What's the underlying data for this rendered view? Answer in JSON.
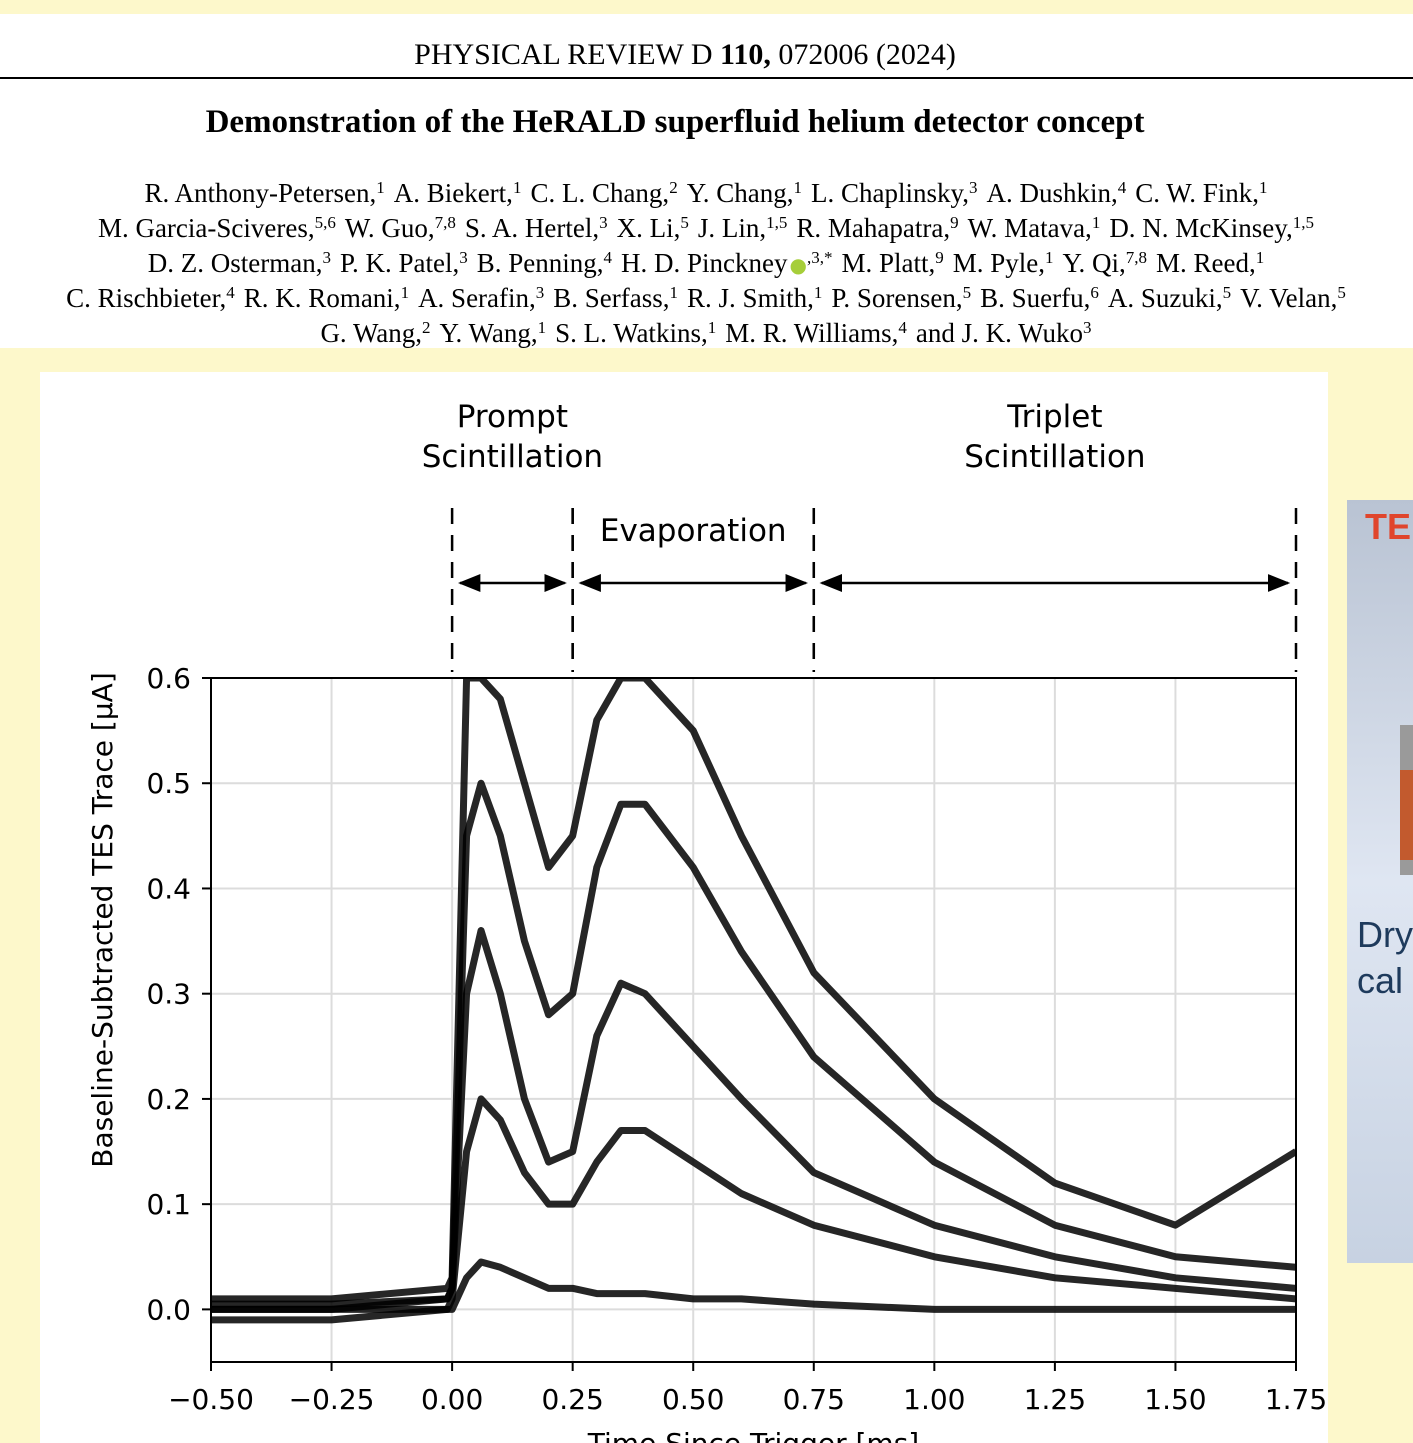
{
  "header": {
    "journal": "PHYSICAL REVIEW D",
    "volume": "110,",
    "article": "072006 (2024)"
  },
  "title": "Demonstration of the HeRALD superfluid helium detector concept",
  "author_lines": [
    [
      {
        "name": "R. Anthony-Petersen,",
        "affil": "1"
      },
      {
        "name": "A. Biekert,",
        "affil": "1"
      },
      {
        "name": "C. L. Chang,",
        "affil": "2"
      },
      {
        "name": "Y. Chang,",
        "affil": "1"
      },
      {
        "name": "L. Chaplinsky,",
        "affil": "3"
      },
      {
        "name": "A. Dushkin,",
        "affil": "4"
      },
      {
        "name": "C. W. Fink,",
        "affil": "1"
      }
    ],
    [
      {
        "name": "M. Garcia-Sciveres,",
        "affil": "5,6"
      },
      {
        "name": "W. Guo,",
        "affil": "7,8"
      },
      {
        "name": "S. A. Hertel,",
        "affil": "3"
      },
      {
        "name": "X. Li,",
        "affil": "5"
      },
      {
        "name": "J. Lin,",
        "affil": "1,5"
      },
      {
        "name": "R. Mahapatra,",
        "affil": "9"
      },
      {
        "name": "W. Matava,",
        "affil": "1"
      },
      {
        "name": "D. N. McKinsey,",
        "affil": "1,5"
      }
    ],
    [
      {
        "name": "D. Z. Osterman,",
        "affil": "3"
      },
      {
        "name": "P. K. Patel,",
        "affil": "3"
      },
      {
        "name": "B. Penning,",
        "affil": "4"
      },
      {
        "name": "H. D. Pinckney",
        "affil": ",3,*",
        "orcid": true
      },
      {
        "name": "M. Platt,",
        "affil": "9"
      },
      {
        "name": "M. Pyle,",
        "affil": "1"
      },
      {
        "name": "Y. Qi,",
        "affil": "7,8"
      },
      {
        "name": "M. Reed,",
        "affil": "1"
      }
    ],
    [
      {
        "name": "C. Rischbieter,",
        "affil": "4"
      },
      {
        "name": "R. K. Romani,",
        "affil": "1"
      },
      {
        "name": "A. Serafin,",
        "affil": "3"
      },
      {
        "name": "B. Serfass,",
        "affil": "1"
      },
      {
        "name": "R. J. Smith,",
        "affil": "1"
      },
      {
        "name": "P. Sorensen,",
        "affil": "5"
      },
      {
        "name": "B. Suerfu,",
        "affil": "6"
      },
      {
        "name": "A. Suzuki,",
        "affil": "5"
      },
      {
        "name": "V. Velan,",
        "affil": "5"
      }
    ],
    [
      {
        "name": "G. Wang,",
        "affil": "2"
      },
      {
        "name": "Y. Wang,",
        "affil": "1"
      },
      {
        "name": "S. L. Watkins,",
        "affil": "1"
      },
      {
        "name": "M. R. Williams,",
        "affil": "4"
      },
      {
        "name": "and J. K. Wuko",
        "affil": "3"
      }
    ]
  ],
  "chart_data": {
    "type": "line",
    "xlabel": "Time Since Trigger [ms]",
    "ylabel": "Baseline-Subtracted TES Trace [μA]",
    "xlim": [
      -0.5,
      1.75
    ],
    "ylim": [
      -0.05,
      0.6
    ],
    "xticks": [
      {
        "value": -0.5,
        "label": "−0.50"
      },
      {
        "value": -0.25,
        "label": "−0.25"
      },
      {
        "value": 0,
        "label": "0.00"
      },
      {
        "value": 0.25,
        "label": "0.25"
      },
      {
        "value": 0.5,
        "label": "0.50"
      },
      {
        "value": 0.75,
        "label": "0.75"
      },
      {
        "value": 1,
        "label": "1.00"
      },
      {
        "value": 1.25,
        "label": "1.25"
      },
      {
        "value": 1.5,
        "label": "1.50"
      },
      {
        "value": 1.75,
        "label": "1.75"
      }
    ],
    "yticks": [
      {
        "value": 0,
        "label": "0.0"
      },
      {
        "value": 0.1,
        "label": "0.1"
      },
      {
        "value": 0.2,
        "label": "0.2"
      },
      {
        "value": 0.3,
        "label": "0.3"
      },
      {
        "value": 0.4,
        "label": "0.4"
      },
      {
        "value": 0.5,
        "label": "0.5"
      },
      {
        "value": 0.6,
        "label": "0.6"
      }
    ],
    "grid": true,
    "x": [
      -0.5,
      -0.25,
      -0.01,
      0,
      0.03,
      0.06,
      0.1,
      0.15,
      0.2,
      0.25,
      0.3,
      0.35,
      0.4,
      0.5,
      0.6,
      0.75,
      1.0,
      1.25,
      1.5,
      1.75
    ],
    "series": [
      {
        "color": "#000000",
        "values": [
          0.01,
          0.01,
          0.02,
          0.03,
          0.6,
          0.6,
          0.58,
          0.5,
          0.42,
          0.45,
          0.56,
          0.6,
          0.6,
          0.55,
          0.45,
          0.32,
          0.2,
          0.12,
          0.08,
          0.15
        ]
      },
      {
        "color": "#000000",
        "values": [
          0.005,
          0.005,
          0.01,
          0.02,
          0.45,
          0.5,
          0.45,
          0.35,
          0.28,
          0.3,
          0.42,
          0.48,
          0.48,
          0.42,
          0.34,
          0.24,
          0.14,
          0.08,
          0.05,
          0.04
        ]
      },
      {
        "color": "#000000",
        "values": [
          0,
          0,
          0.01,
          0.02,
          0.3,
          0.36,
          0.3,
          0.2,
          0.14,
          0.15,
          0.26,
          0.31,
          0.3,
          0.25,
          0.2,
          0.13,
          0.08,
          0.05,
          0.03,
          0.02
        ]
      },
      {
        "color": "#000000",
        "values": [
          0,
          0,
          0,
          0.01,
          0.15,
          0.2,
          0.18,
          0.13,
          0.1,
          0.1,
          0.14,
          0.17,
          0.17,
          0.14,
          0.11,
          0.08,
          0.05,
          0.03,
          0.02,
          0.01
        ]
      },
      {
        "color": "#000000",
        "values": [
          -0.01,
          -0.01,
          0,
          0,
          0.03,
          0.045,
          0.04,
          0.03,
          0.02,
          0.02,
          0.015,
          0.015,
          0.015,
          0.01,
          0.01,
          0.005,
          0,
          0,
          0,
          0
        ]
      }
    ],
    "regions": [
      {
        "lines": [
          "Prompt",
          "Scintillation"
        ],
        "start": 0,
        "end": 0.25
      },
      {
        "lines": [
          "Evaporation"
        ],
        "start": 0.25,
        "end": 0.75
      },
      {
        "lines": [
          "Triplet",
          "Scintillation"
        ],
        "start": 0.75,
        "end": 1.75
      }
    ]
  },
  "side_panel": {
    "heading": "TE",
    "lines": [
      "Dry",
      "cal"
    ]
  }
}
